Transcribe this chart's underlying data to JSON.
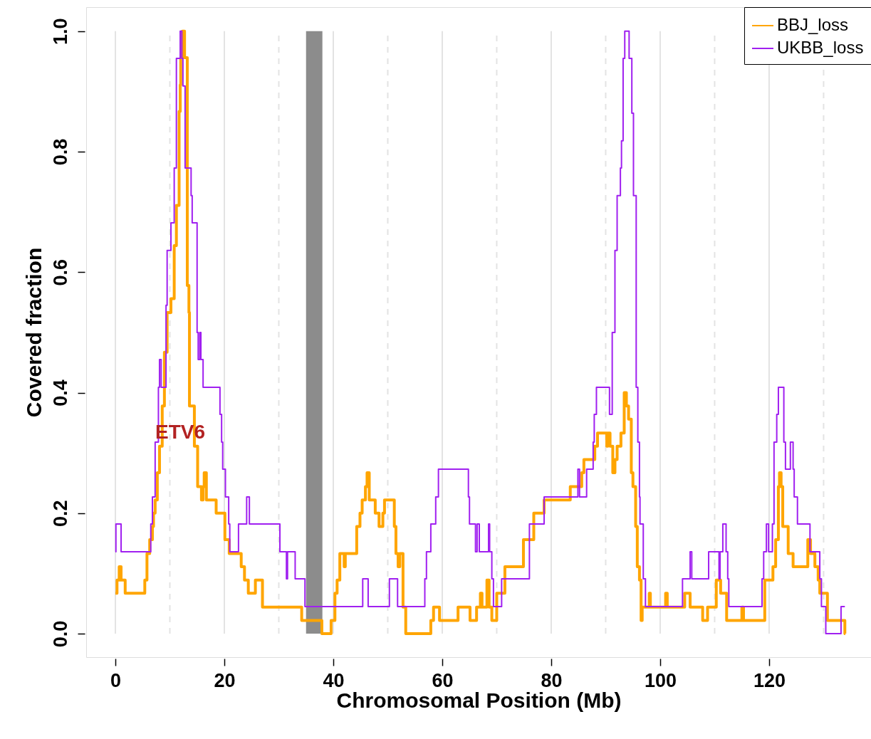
{
  "chart_data": {
    "type": "step",
    "xlabel": "Chromosomal Position (Mb)",
    "ylabel": "Covered fraction",
    "xlim": [
      -5.36,
      138.7
    ],
    "ylim": [
      -0.039,
      1.04
    ],
    "xticks": [
      0,
      20,
      40,
      60,
      80,
      100,
      120
    ],
    "yticks": [
      {
        "value": 0,
        "label": "0.0"
      },
      {
        "value": 0.2,
        "label": "0.2"
      },
      {
        "value": 0.4,
        "label": "0.4"
      },
      {
        "value": 0.6,
        "label": "0.6"
      },
      {
        "value": 0.8,
        "label": "0.8"
      },
      {
        "value": 1,
        "label": "1.0"
      }
    ],
    "grid": "x",
    "legend": "top right",
    "ref_lines": [
      {
        "axis": "x",
        "value": 10,
        "line_style": "dashed",
        "color": "#e3e3e3"
      },
      {
        "axis": "x",
        "value": 30,
        "line_style": "dashed",
        "color": "#e3e3e3"
      },
      {
        "axis": "x",
        "value": 50,
        "line_style": "dashed",
        "color": "#e3e3e3"
      },
      {
        "axis": "x",
        "value": 70,
        "line_style": "dashed",
        "color": "#e3e3e3"
      },
      {
        "axis": "x",
        "value": 90,
        "line_style": "dashed",
        "color": "#e3e3e3"
      },
      {
        "axis": "x",
        "value": 110,
        "line_style": "dashed",
        "color": "#e3e3e3"
      },
      {
        "axis": "x",
        "value": 130,
        "line_style": "dashed",
        "color": "#e3e3e3"
      }
    ],
    "bands": [
      {
        "axis": "x",
        "from": 35,
        "to": 38,
        "color": "#8c8c8c"
      }
    ],
    "annotations": [
      "ETV6"
    ],
    "series": [
      {
        "name": "BBJ_loss",
        "color": "#ffa500",
        "x": [
          0,
          0.3,
          0.7,
          1.05,
          1.8,
          5.4,
          5.8,
          6.3,
          6.8,
          7.0,
          7.3,
          7.7,
          8.1,
          8.6,
          9.0,
          9.5,
          10.2,
          10.8,
          11.2,
          11.7,
          11.9,
          12.0,
          12.3,
          12.7,
          13.2,
          13.5,
          13.6,
          14.5,
          15.1,
          15.8,
          16.1,
          16.3,
          16.7,
          18.5,
          20.1,
          20.9,
          23.1,
          23.7,
          24.4,
          25.7,
          27.0,
          34.2,
          37.9,
          39.6,
          40.3,
          40.7,
          41.2,
          42.0,
          42.2,
          44.3,
          44.9,
          45.3,
          45.9,
          46.2,
          46.6,
          47.7,
          48.4,
          49.1,
          49.4,
          51.2,
          51.5,
          51.9,
          52.2,
          52.8,
          53.3,
          57.9,
          58.4,
          59.5,
          62.9,
          65.1,
          66.3,
          67.0,
          67.3,
          68.2,
          68.6,
          69.1,
          70.0,
          71.5,
          74.9,
          76.8,
          78.7,
          83.5,
          85.6,
          86.0,
          88.0,
          88.5,
          90.2,
          90.4,
          90.8,
          91.3,
          91.7,
          92.1,
          92.8,
          93.4,
          93.8,
          94.2,
          94.7,
          95.0,
          95.5,
          95.8,
          96.2,
          96.5,
          96.7,
          98.0,
          98.2,
          101.0,
          101.3,
          104.5,
          105.5,
          107.8,
          108.7,
          110.3,
          111.1,
          112.2,
          115.0,
          115.3,
          119.2,
          120.7,
          121.2,
          121.7,
          121.9,
          122.2,
          122.5,
          123.5,
          124.4,
          127.1,
          127.6,
          128.4,
          129.0,
          129.3,
          130.7,
          133.9,
          134.0
        ],
        "values": [
          0.067,
          0.089,
          0.111,
          0.089,
          0.067,
          0.089,
          0.133,
          0.156,
          0.178,
          0.2,
          0.222,
          0.267,
          0.311,
          0.378,
          0.467,
          0.533,
          0.556,
          0.644,
          0.711,
          0.867,
          0.911,
          0.956,
          1.0,
          0.956,
          0.578,
          0.533,
          0.378,
          0.311,
          0.244,
          0.222,
          0.244,
          0.267,
          0.222,
          0.2,
          0.156,
          0.133,
          0.111,
          0.089,
          0.067,
          0.089,
          0.044,
          0.022,
          0.0,
          0.022,
          0.067,
          0.089,
          0.133,
          0.111,
          0.133,
          0.178,
          0.2,
          0.222,
          0.244,
          0.267,
          0.222,
          0.2,
          0.178,
          0.2,
          0.222,
          0.178,
          0.133,
          0.111,
          0.133,
          0.044,
          0.0,
          0.022,
          0.044,
          0.022,
          0.044,
          0.022,
          0.044,
          0.067,
          0.044,
          0.089,
          0.044,
          0.022,
          0.067,
          0.111,
          0.156,
          0.2,
          0.222,
          0.244,
          0.267,
          0.289,
          0.311,
          0.333,
          0.311,
          0.333,
          0.311,
          0.267,
          0.289,
          0.311,
          0.333,
          0.4,
          0.378,
          0.356,
          0.267,
          0.244,
          0.178,
          0.111,
          0.089,
          0.022,
          0.044,
          0.067,
          0.044,
          0.067,
          0.044,
          0.067,
          0.044,
          0.022,
          0.044,
          0.089,
          0.067,
          0.022,
          0.044,
          0.022,
          0.089,
          0.111,
          0.156,
          0.244,
          0.267,
          0.244,
          0.178,
          0.133,
          0.111,
          0.156,
          0.133,
          0.111,
          0.089,
          0.067,
          0.022,
          0.0,
          0.0
        ]
      },
      {
        "name": "UKBB_loss",
        "color": "#a020f0",
        "x": [
          0,
          0.1,
          1.05,
          6.5,
          6.8,
          7.3,
          7.9,
          8.1,
          8.4,
          9.3,
          9.5,
          10.2,
          10.8,
          11.2,
          11.9,
          12.2,
          12.4,
          12.8,
          13.9,
          14.1,
          15.0,
          15.2,
          15.5,
          15.7,
          16.1,
          19.2,
          19.5,
          19.7,
          20.2,
          20.8,
          21.0,
          22.6,
          24.1,
          24.6,
          30.2,
          31.4,
          31.6,
          33.0,
          34.8,
          45.4,
          46.4,
          50.3,
          51.8,
          56.8,
          57.1,
          57.9,
          58.8,
          59.3,
          64.8,
          65.0,
          66.1,
          66.4,
          66.8,
          68.5,
          68.7,
          69.1,
          69.4,
          70.9,
          76.0,
          78.7,
          84.9,
          85.2,
          86.5,
          87.7,
          87.9,
          88.3,
          90.7,
          91.2,
          91.7,
          92.1,
          92.7,
          92.9,
          93.2,
          93.5,
          94.3,
          94.8,
          95.1,
          95.6,
          95.9,
          96.2,
          96.3,
          96.9,
          97.3,
          104.1,
          105.5,
          105.8,
          108.9,
          110.8,
          111.0,
          111.5,
          112.1,
          112.4,
          112.6,
          118.7,
          119.0,
          119.5,
          119.9,
          120.6,
          120.9,
          121.4,
          121.7,
          122.7,
          123.0,
          123.9,
          124.4,
          124.6,
          125.2,
          127.5,
          129.3,
          129.6,
          130.4,
          133.2,
          133.9
        ],
        "values": [
          0.136,
          0.182,
          0.136,
          0.182,
          0.227,
          0.318,
          0.409,
          0.455,
          0.409,
          0.545,
          0.636,
          0.682,
          0.773,
          0.955,
          1.0,
          0.955,
          0.909,
          0.773,
          0.727,
          0.682,
          0.5,
          0.455,
          0.5,
          0.455,
          0.409,
          0.364,
          0.318,
          0.273,
          0.227,
          0.182,
          0.136,
          0.182,
          0.227,
          0.182,
          0.136,
          0.091,
          0.136,
          0.091,
          0.045,
          0.091,
          0.045,
          0.091,
          0.045,
          0.091,
          0.136,
          0.182,
          0.227,
          0.273,
          0.227,
          0.182,
          0.136,
          0.182,
          0.136,
          0.182,
          0.136,
          0.091,
          0.045,
          0.091,
          0.182,
          0.227,
          0.273,
          0.227,
          0.273,
          0.318,
          0.364,
          0.409,
          0.364,
          0.5,
          0.636,
          0.727,
          0.773,
          0.818,
          0.955,
          1.0,
          0.955,
          0.864,
          0.727,
          0.409,
          0.318,
          0.227,
          0.182,
          0.091,
          0.045,
          0.091,
          0.136,
          0.091,
          0.136,
          0.091,
          0.136,
          0.182,
          0.136,
          0.091,
          0.045,
          0.091,
          0.136,
          0.182,
          0.136,
          0.182,
          0.318,
          0.364,
          0.409,
          0.318,
          0.273,
          0.318,
          0.273,
          0.227,
          0.182,
          0.136,
          0.091,
          0.045,
          0.0,
          0.045,
          0.045
        ]
      }
    ]
  }
}
